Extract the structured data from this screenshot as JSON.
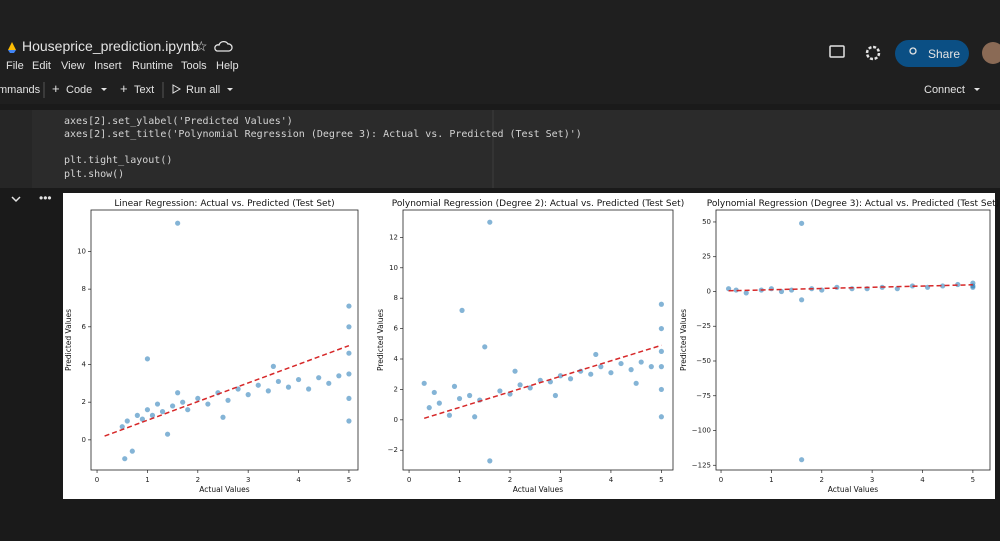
{
  "header": {
    "title": "Houseprice_prediction.ipynb",
    "menu": [
      "File",
      "Edit",
      "View",
      "Insert",
      "Runtime",
      "Tools",
      "Help"
    ],
    "share": "Share"
  },
  "toolbar": {
    "commands": "mmands",
    "code": "Code",
    "text": "Text",
    "run_all": "Run all",
    "connect": "Connect"
  },
  "code": {
    "lines": [
      "axes[2].set_ylabel('Predicted Values')",
      "axes[2].set_title('Polynomial Regression (Degree 3): Actual vs. Predicted (Test Set)')",
      "plt.tight_layout()",
      "plt.show()"
    ]
  },
  "chart_data": [
    {
      "type": "scatter",
      "title": "Linear Regression: Actual vs. Predicted (Test Set)",
      "x_label": "Actual Values",
      "y_label": "Predicted Values",
      "xlim": [
        -0.12,
        5.18
      ],
      "ylim": [
        -1.6,
        12.2
      ],
      "xticks": [
        0,
        1,
        2,
        3,
        4,
        5
      ],
      "yticks": [
        0,
        2,
        4,
        6,
        8,
        10
      ],
      "series": [
        {
          "type": "scatter",
          "color": "#1f77b4",
          "x": [
            0.5,
            0.6,
            0.7,
            0.8,
            0.9,
            1.0,
            1.1,
            1.2,
            1.3,
            1.4,
            1.5,
            1.6,
            1.7,
            1.8,
            2.0,
            2.2,
            2.4,
            2.6,
            2.8,
            3.0,
            3.2,
            3.4,
            3.6,
            3.8,
            4.0,
            4.2,
            4.4,
            4.6,
            4.8,
            5,
            5,
            5,
            5,
            5,
            5,
            0.55,
            1.0,
            1.6,
            2.5,
            3.5
          ],
          "values": [
            0.7,
            1.0,
            -0.6,
            1.3,
            1.1,
            1.6,
            1.3,
            1.9,
            1.5,
            0.3,
            1.8,
            11.5,
            2.0,
            1.6,
            2.2,
            1.9,
            2.5,
            2.1,
            2.7,
            2.4,
            2.9,
            2.6,
            3.1,
            2.8,
            3.2,
            2.7,
            3.3,
            3.0,
            3.4,
            1.0,
            2.2,
            3.5,
            4.6,
            6.0,
            7.1,
            -1.0,
            4.3,
            2.5,
            1.2,
            3.9
          ]
        },
        {
          "type": "line",
          "color": "#d62728",
          "x": [
            0.15,
            5
          ],
          "values": [
            0.2,
            5.0
          ]
        }
      ]
    },
    {
      "type": "scatter",
      "title": "Polynomial Regression (Degree 2): Actual vs. Predicted (Test Set)",
      "x_label": "Actual Values",
      "y_label": "Predicted Values",
      "xlim": [
        -0.12,
        5.23
      ],
      "ylim": [
        -3.3,
        13.8
      ],
      "xticks": [
        0,
        1,
        2,
        3,
        4,
        5
      ],
      "yticks": [
        {
          "value": -2,
          "label": "−2"
        },
        0,
        2,
        4,
        6,
        8,
        10,
        12
      ],
      "series": [
        {
          "type": "scatter",
          "color": "#1f77b4",
          "x": [
            0.3,
            0.4,
            0.6,
            0.8,
            1.0,
            1.05,
            1.2,
            1.4,
            1.6,
            1.6,
            1.8,
            2.0,
            2.2,
            2.4,
            2.6,
            2.8,
            3.0,
            3.2,
            3.4,
            3.6,
            3.8,
            4.0,
            4.2,
            4.4,
            4.6,
            4.8,
            5,
            5,
            5,
            5,
            5,
            5,
            0.5,
            1.3,
            2.1,
            2.9,
            3.7,
            4.5,
            0.9,
            1.5
          ],
          "values": [
            2.4,
            0.8,
            1.1,
            0.3,
            1.4,
            7.2,
            1.6,
            1.3,
            13.0,
            -2.7,
            1.9,
            1.7,
            2.3,
            2.1,
            2.6,
            2.5,
            2.9,
            2.7,
            3.2,
            3.0,
            3.5,
            3.1,
            3.7,
            3.3,
            3.8,
            3.5,
            0.2,
            2.0,
            3.5,
            4.5,
            6.0,
            7.6,
            1.8,
            0.2,
            3.2,
            1.6,
            4.3,
            2.4,
            2.2,
            4.8
          ]
        },
        {
          "type": "line",
          "color": "#d62728",
          "x": [
            0.3,
            5
          ],
          "values": [
            0.1,
            4.9
          ]
        }
      ]
    },
    {
      "type": "scatter",
      "title": "Polynomial Regression (Degree 3): Actual vs. Predicted (Test Set)",
      "x_label": "Actual Values",
      "y_label": "Predicted Values",
      "xlim": [
        -0.1,
        5.34
      ],
      "ylim": [
        -128.4,
        58.6
      ],
      "xticks": [
        0,
        1,
        2,
        3,
        4,
        5
      ],
      "yticks": [
        {
          "value": -125,
          "label": "−125"
        },
        {
          "value": -100,
          "label": "−100"
        },
        {
          "value": -75,
          "label": "−75"
        },
        {
          "value": -50,
          "label": "−50"
        },
        {
          "value": -25,
          "label": "−25"
        },
        0,
        25,
        50
      ],
      "series": [
        {
          "type": "scatter",
          "color": "#1f77b4",
          "x": [
            0.15,
            0.3,
            0.5,
            0.8,
            1.0,
            1.2,
            1.4,
            1.6,
            1.6,
            1.6,
            1.8,
            2.0,
            2.3,
            2.6,
            2.9,
            3.2,
            3.5,
            3.8,
            4.1,
            4.4,
            4.7,
            5,
            5,
            5
          ],
          "values": [
            2,
            1,
            -1,
            1,
            2,
            0,
            1,
            49,
            -121,
            -6,
            2,
            1,
            3,
            2,
            2,
            3,
            2,
            4,
            3,
            4,
            5,
            4,
            6,
            3
          ]
        },
        {
          "type": "line",
          "color": "#d62728",
          "x": [
            0.15,
            5
          ],
          "values": [
            0.5,
            4.8
          ]
        }
      ]
    }
  ]
}
